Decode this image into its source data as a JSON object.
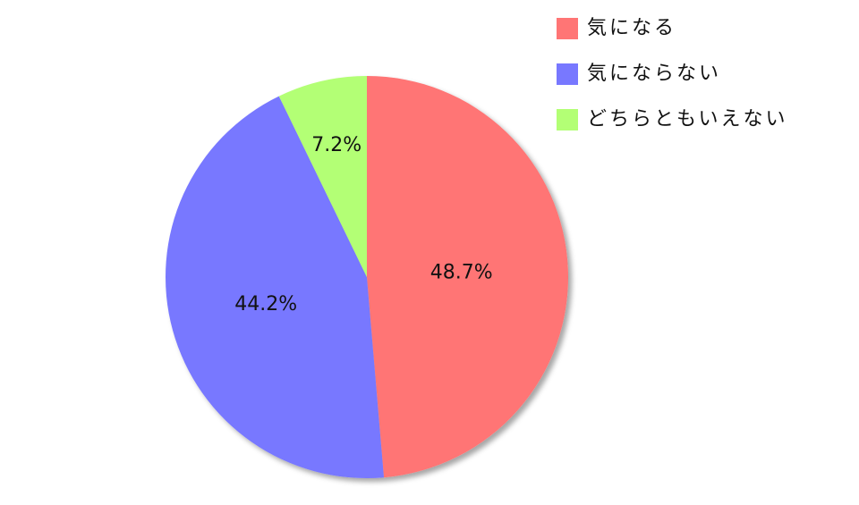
{
  "chart_data": {
    "type": "pie",
    "categories": [
      "気になる",
      "気にならない",
      "どちらともいえない"
    ],
    "values": [
      48.7,
      44.2,
      7.2
    ],
    "value_labels": [
      "48.7%",
      "44.2%",
      "7.2%"
    ],
    "colors": [
      "#ff7575",
      "#7878ff",
      "#b3ff75"
    ],
    "legend": "top-right"
  }
}
